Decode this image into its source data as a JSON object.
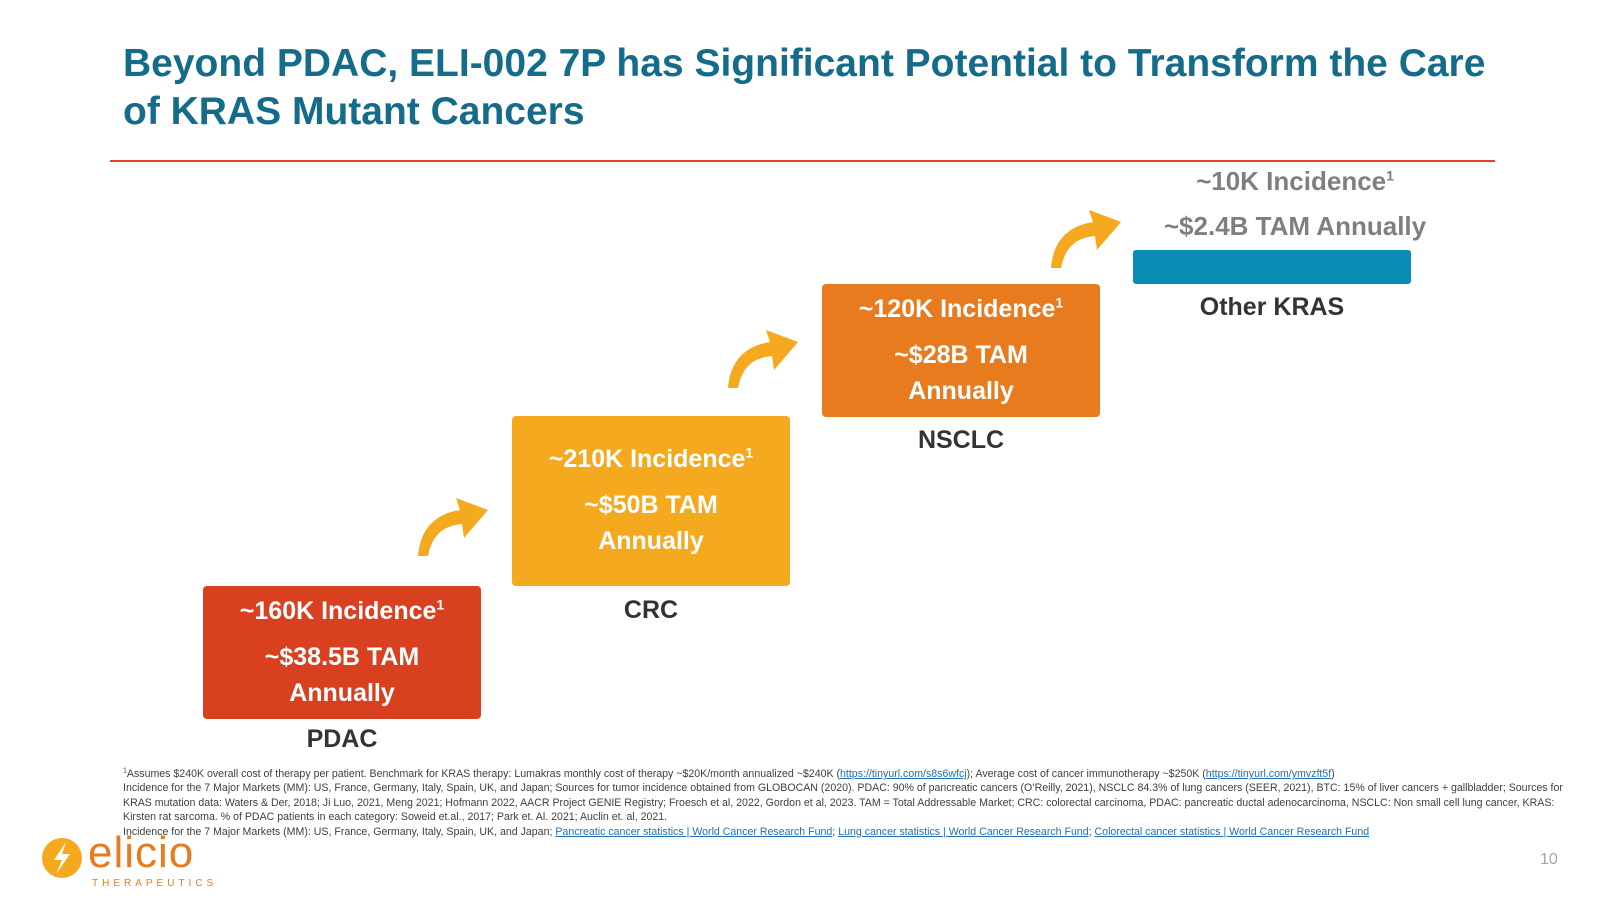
{
  "title": "Beyond PDAC, ELI-002 7P has Significant Potential to Transform the Care of KRAS Mutant Cancers",
  "steps": [
    {
      "incidence": "~160K Incidence",
      "sup": "1",
      "tam": "~$38.5B TAM Annually",
      "label": "PDAC",
      "color": "#d9401f"
    },
    {
      "incidence": "~210K Incidence",
      "sup": "1",
      "tam": "~$50B TAM Annually",
      "label": "CRC",
      "color": "#f5a91f"
    },
    {
      "incidence": "~120K Incidence",
      "sup": "1",
      "tam": "~$28B TAM Annually",
      "label": "NSCLC",
      "color": "#e87b1e"
    },
    {
      "incidence": "~10K Incidence",
      "sup": "1",
      "tam": "~$2.4B TAM Annually",
      "label": "Other KRAS",
      "color": "#0a8cb5"
    }
  ],
  "footnote": {
    "line1a": "Assumes $240K overall cost of therapy per patient. Benchmark for KRAS therapy: Lumakras monthly cost of therapy ~$20K/month annualized ~$240K (",
    "link1": "https://tinyurl.com/s8s6wfcj",
    "line1b": "); Average cost of cancer immunotherapy ~$250K (",
    "link2": "https://tinyurl.com/ymvzft5f",
    "line1c": ")",
    "para2": "Incidence for the 7 Major Markets (MM): US, France, Germany, Italy, Spain, UK, and Japan; Sources for tumor incidence obtained from GLOBOCAN (2020). PDAC: 90% of pancreatic cancers (O’Reilly, 2021), NSCLC 84.3% of lung cancers (SEER, 2021), BTC: 15% of liver cancers + gallbladder; Sources for KRAS mutation data: Waters & Der, 2018; Ji Luo, 2021, Meng 2021; Hofmann 2022, AACR Project GENIE Registry; Froesch et al, 2022, Gordon et al, 2023. TAM = Total Addressable Market; CRC: colorectal carcinoma, PDAC: pancreatic ductal adenocarcinoma, NSCLC: Non small cell lung cancer, KRAS: Kirsten rat sarcoma. % of PDAC patients in each category: Soweid et.al., 2017; Park et. Al. 2021; Auclin et. al, 2021.",
    "para3": "Incidence for the 7 Major Markets (MM): US, France, Germany, Italy, Spain, UK, and Japan; ",
    "link3": "Pancreatic cancer statistics | World Cancer Research Fund",
    "link4": "Lung cancer statistics | World Cancer Research Fund",
    "link5": "Colorectal cancer statistics | World Cancer Research Fund"
  },
  "logo": {
    "name": "elicio",
    "sub": "THERAPEUTICS"
  },
  "page_number": "10"
}
